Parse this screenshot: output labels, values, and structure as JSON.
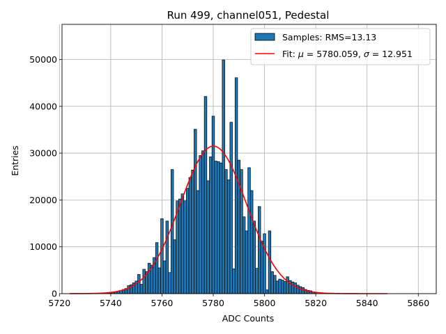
{
  "chart_data": {
    "type": "bar",
    "title": "Run 499, channel051, Pedestal",
    "xlabel": "ADC Counts",
    "ylabel": "Entries",
    "xlim": [
      5721,
      5867
    ],
    "ylim": [
      0,
      57500
    ],
    "xticks": [
      5720,
      5740,
      5760,
      5780,
      5800,
      5820,
      5840,
      5860
    ],
    "yticks": [
      0,
      10000,
      20000,
      30000,
      40000,
      50000
    ],
    "grid": true,
    "legend_position": "top-right",
    "bin_width": 1,
    "series": [
      {
        "name": "Samples: RMS=13.13",
        "kind": "histogram",
        "color": "#1f77b4",
        "edgecolor": "#000000",
        "x": [
          5739,
          5740,
          5741,
          5742,
          5743,
          5744,
          5745,
          5746,
          5747,
          5748,
          5749,
          5750,
          5751,
          5752,
          5753,
          5754,
          5755,
          5756,
          5757,
          5758,
          5759,
          5760,
          5761,
          5762,
          5763,
          5764,
          5765,
          5766,
          5767,
          5768,
          5769,
          5770,
          5771,
          5772,
          5773,
          5774,
          5775,
          5776,
          5777,
          5778,
          5779,
          5780,
          5781,
          5782,
          5783,
          5784,
          5785,
          5786,
          5787,
          5788,
          5789,
          5790,
          5791,
          5792,
          5793,
          5794,
          5795,
          5796,
          5797,
          5798,
          5799,
          5800,
          5801,
          5802,
          5803,
          5804,
          5805,
          5806,
          5807,
          5808,
          5809,
          5810,
          5811,
          5812,
          5813,
          5814,
          5815,
          5816,
          5817,
          5818,
          5819,
          5820
        ],
        "values": [
          100,
          150,
          250,
          400,
          550,
          700,
          900,
          1100,
          1700,
          1900,
          2300,
          2700,
          4100,
          2000,
          5200,
          4700,
          6500,
          6100,
          7700,
          10900,
          5500,
          16000,
          7000,
          15500,
          4500,
          26500,
          11500,
          19800,
          20200,
          21300,
          19800,
          22500,
          24800,
          26400,
          35100,
          22000,
          29500,
          30500,
          42100,
          24100,
          29200,
          37900,
          28300,
          28200,
          27900,
          49900,
          26500,
          24300,
          36600,
          5300,
          46100,
          28500,
          26500,
          16400,
          13400,
          26900,
          22000,
          15500,
          5400,
          18600,
          11200,
          12800,
          800,
          13400,
          4700,
          3900,
          2700,
          3100,
          2900,
          2600,
          3600,
          2800,
          2500,
          2300,
          1800,
          1500,
          1300,
          900,
          700,
          600,
          400,
          300
        ]
      },
      {
        "name": "Fit: μ = 5780.059, σ = 12.951",
        "kind": "gaussian",
        "color": "#ff0000",
        "mu": 5780.059,
        "sigma": 12.951,
        "amplitude": 31500,
        "x_range": [
          5724,
          5848
        ]
      }
    ]
  },
  "legend": {
    "samples_label": "Samples: RMS=13.13",
    "fit_prefix": "Fit: ",
    "fit_mu_symbol": "μ",
    "fit_mu_value": " = 5780.059, ",
    "fit_sigma_symbol": "σ",
    "fit_sigma_value": " = 12.951"
  }
}
